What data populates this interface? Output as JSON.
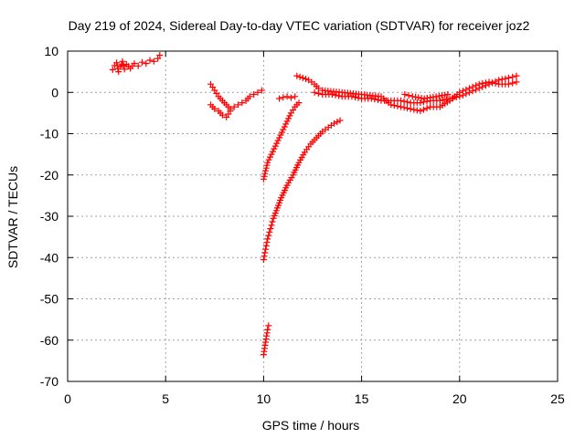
{
  "chart_data": {
    "type": "scatter",
    "title": "Day 219 of 2024, Sidereal Day-to-day VTEC variation (SDTVAR) for receiver joz2",
    "xlabel": "GPS time / hours",
    "ylabel": "SDTVAR / TECUs",
    "xlim": [
      0,
      25
    ],
    "ylim": [
      -70,
      10
    ],
    "x_ticks": [
      0,
      5,
      10,
      15,
      20,
      25
    ],
    "y_ticks": [
      10,
      0,
      -10,
      -20,
      -30,
      -40,
      -50,
      -60,
      -70
    ],
    "grid": true,
    "legend": "none",
    "marker": "plus",
    "color": "#ff0000",
    "series": [
      {
        "points": [
          [
            2.3,
            5.5
          ],
          [
            2.4,
            6.5
          ],
          [
            2.5,
            7.2
          ],
          [
            2.6,
            5
          ],
          [
            2.7,
            6.2
          ],
          [
            2.8,
            7.5
          ],
          [
            2.9,
            5.6
          ],
          [
            3,
            6.8
          ],
          [
            3.2,
            5.8
          ],
          [
            3.4,
            7
          ],
          [
            3.6,
            6.4
          ],
          [
            3.8,
            7.3
          ],
          [
            4,
            7
          ],
          [
            4.2,
            7.8
          ],
          [
            4.4,
            7.5
          ],
          [
            4.6,
            8.2
          ],
          [
            4.7,
            9
          ]
        ]
      },
      {
        "points": [
          [
            7.3,
            2
          ],
          [
            7.5,
            0.5
          ],
          [
            7.7,
            -1
          ],
          [
            7.9,
            -2
          ],
          [
            8.1,
            -3
          ],
          [
            8.3,
            -4
          ],
          [
            8.5,
            -3.5
          ],
          [
            8.7,
            -3
          ],
          [
            8.9,
            -2.5
          ],
          [
            9.1,
            -2
          ],
          [
            9.3,
            -1
          ],
          [
            9.5,
            -0.5
          ],
          [
            9.7,
            0
          ],
          [
            9.9,
            0.5
          ],
          [
            7.3,
            -3
          ],
          [
            7.5,
            -4
          ],
          [
            7.7,
            -4.5
          ],
          [
            7.9,
            -5.5
          ],
          [
            8.1,
            -6
          ],
          [
            8.3,
            -4.5
          ]
        ]
      },
      {
        "points": [
          [
            10,
            -21
          ],
          [
            10.1,
            -19
          ],
          [
            10.2,
            -17
          ],
          [
            10.4,
            -15
          ],
          [
            10.6,
            -13
          ],
          [
            10.8,
            -11
          ],
          [
            11,
            -9
          ],
          [
            11.2,
            -7
          ],
          [
            11.4,
            -5
          ],
          [
            11.6,
            -3.5
          ],
          [
            11.8,
            -2.5
          ]
        ]
      },
      {
        "points": [
          [
            10,
            -40.5
          ],
          [
            10.1,
            -38
          ],
          [
            10.2,
            -35.5
          ],
          [
            10.35,
            -33
          ],
          [
            10.5,
            -30.5
          ],
          [
            10.7,
            -28
          ],
          [
            10.9,
            -25.5
          ],
          [
            11.2,
            -22.5
          ],
          [
            11.5,
            -20
          ],
          [
            11.8,
            -17
          ],
          [
            12.1,
            -14.5
          ],
          [
            12.4,
            -12.5
          ],
          [
            12.7,
            -11
          ],
          [
            13,
            -9.5
          ],
          [
            13.3,
            -8.5
          ],
          [
            13.6,
            -7.5
          ],
          [
            13.9,
            -6.8
          ]
        ]
      },
      {
        "points": [
          [
            10,
            -63.5
          ],
          [
            10.05,
            -62
          ],
          [
            10.1,
            -60.5
          ],
          [
            10.15,
            -59
          ],
          [
            10.2,
            -57.5
          ],
          [
            10.25,
            -56.5
          ]
        ]
      },
      {
        "points": [
          [
            10.8,
            -1.5
          ],
          [
            11,
            -1.2
          ],
          [
            11.2,
            -1
          ],
          [
            11.4,
            -1.3
          ],
          [
            11.6,
            -1
          ]
        ]
      },
      {
        "points": [
          [
            11.7,
            4
          ],
          [
            12,
            3.5
          ],
          [
            12.3,
            3
          ],
          [
            12.6,
            2
          ],
          [
            12.8,
            1
          ]
        ]
      },
      {
        "points": [
          [
            12.6,
            0
          ],
          [
            13,
            -0.5
          ],
          [
            13.5,
            -0.5
          ],
          [
            14,
            -1
          ],
          [
            14.5,
            -1
          ],
          [
            15,
            -1.5
          ],
          [
            15.5,
            -1.5
          ],
          [
            16,
            -2
          ],
          [
            16.5,
            -2
          ],
          [
            17,
            -2
          ],
          [
            17.5,
            -2.5
          ],
          [
            18,
            -2.5
          ],
          [
            18.5,
            -2
          ],
          [
            19,
            -2
          ],
          [
            19.5,
            -1.5
          ],
          [
            20,
            -1
          ],
          [
            20.5,
            0
          ],
          [
            21,
            1
          ],
          [
            21.5,
            2
          ],
          [
            22,
            3
          ],
          [
            22.5,
            3.5
          ],
          [
            22.9,
            4
          ],
          [
            13,
            0.5
          ],
          [
            14,
            0
          ],
          [
            15,
            -0.5
          ],
          [
            16,
            -1
          ],
          [
            16.5,
            -3
          ],
          [
            17,
            -3.5
          ],
          [
            17.5,
            -4
          ],
          [
            18,
            -4.5
          ],
          [
            18.5,
            -3.5
          ],
          [
            19,
            -3.5
          ],
          [
            19.5,
            -2
          ],
          [
            20,
            0
          ],
          [
            20.5,
            1
          ],
          [
            21,
            2
          ],
          [
            21.5,
            2.5
          ],
          [
            22,
            2
          ],
          [
            22.5,
            2
          ],
          [
            22.9,
            2.5
          ],
          [
            17.2,
            -0.5
          ],
          [
            17.6,
            -1
          ],
          [
            18.2,
            -1.5
          ],
          [
            18.8,
            -1
          ],
          [
            19.4,
            -0.5
          ]
        ]
      }
    ]
  }
}
